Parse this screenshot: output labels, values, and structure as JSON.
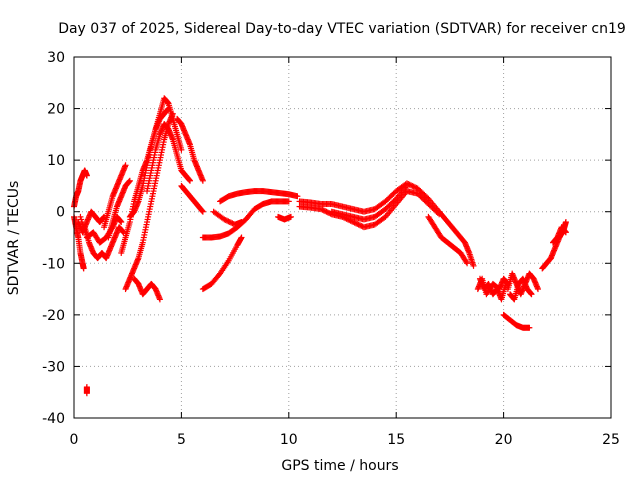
{
  "chart_data": {
    "type": "scatter",
    "title": "Day 037 of 2025, Sidereal Day-to-day VTEC variation (SDTVAR) for receiver cn19",
    "xlabel": "GPS time / hours",
    "ylabel": "SDTVAR / TECUs",
    "xlim": [
      0,
      25
    ],
    "ylim": [
      -40,
      30
    ],
    "xticks": [
      0,
      5,
      10,
      15,
      20,
      25
    ],
    "yticks": [
      -40,
      -30,
      -20,
      -10,
      0,
      10,
      20,
      30
    ],
    "grid": true,
    "marker": "+",
    "series": [
      {
        "name": "SDTVAR",
        "color": "#ff0000",
        "tracks": [
          [
            [
              0.0,
              -1
            ],
            [
              0.1,
              -3
            ],
            [
              0.2,
              -5
            ],
            [
              0.3,
              -8
            ],
            [
              0.4,
              -10
            ],
            [
              0.45,
              -11
            ]
          ],
          [
            [
              0.0,
              1
            ],
            [
              0.1,
              3
            ],
            [
              0.2,
              4
            ],
            [
              0.3,
              6
            ],
            [
              0.4,
              7
            ],
            [
              0.5,
              8
            ],
            [
              0.6,
              7
            ]
          ],
          [
            [
              0.2,
              -2
            ],
            [
              0.4,
              -4
            ],
            [
              0.6,
              -2
            ],
            [
              0.8,
              0
            ],
            [
              1.0,
              -1
            ],
            [
              1.2,
              -2
            ],
            [
              1.4,
              -1
            ]
          ],
          [
            [
              0.5,
              -3
            ],
            [
              0.7,
              -6
            ],
            [
              0.9,
              -8
            ],
            [
              1.1,
              -9
            ],
            [
              1.3,
              -8
            ],
            [
              1.5,
              -9
            ],
            [
              1.7,
              -7
            ],
            [
              1.9,
              -5
            ],
            [
              2.1,
              -3
            ],
            [
              2.3,
              -4
            ]
          ],
          [
            [
              0.3,
              -1
            ],
            [
              0.6,
              -5
            ],
            [
              0.9,
              -4
            ],
            [
              1.2,
              -6
            ],
            [
              1.5,
              -5
            ],
            [
              1.8,
              -3
            ],
            [
              2.0,
              -1
            ],
            [
              2.2,
              -2
            ]
          ],
          [
            [
              1.4,
              -3
            ],
            [
              1.6,
              0
            ],
            [
              1.8,
              3
            ],
            [
              2.0,
              5
            ],
            [
              2.2,
              7
            ],
            [
              2.4,
              9
            ]
          ],
          [
            [
              1.6,
              -5
            ],
            [
              1.8,
              -2
            ],
            [
              2.0,
              1
            ],
            [
              2.2,
              3
            ],
            [
              2.4,
              5
            ],
            [
              2.6,
              6
            ]
          ],
          [
            [
              2.2,
              -8
            ],
            [
              2.4,
              -5
            ],
            [
              2.6,
              -2
            ],
            [
              2.8,
              2
            ],
            [
              3.0,
              5
            ],
            [
              3.2,
              8
            ],
            [
              3.4,
              10
            ],
            [
              3.6,
              13
            ],
            [
              3.8,
              16
            ],
            [
              4.0,
              18
            ],
            [
              4.2,
              19
            ],
            [
              4.4,
              20
            ]
          ],
          [
            [
              2.4,
              -15
            ],
            [
              2.6,
              -13
            ],
            [
              2.8,
              -11
            ],
            [
              3.0,
              -9
            ],
            [
              3.2,
              -6
            ],
            [
              3.4,
              -2
            ],
            [
              3.6,
              2
            ],
            [
              3.8,
              6
            ],
            [
              4.0,
              10
            ],
            [
              4.2,
              14
            ],
            [
              4.4,
              17
            ],
            [
              4.6,
              19
            ]
          ],
          [
            [
              2.8,
              -13
            ],
            [
              3.0,
              -14
            ],
            [
              3.2,
              -16
            ],
            [
              3.4,
              -15
            ],
            [
              3.6,
              -14
            ],
            [
              3.8,
              -15
            ],
            [
              4.0,
              -17
            ]
          ],
          [
            [
              2.6,
              -1
            ],
            [
              2.8,
              0
            ],
            [
              3.0,
              2
            ],
            [
              3.2,
              5
            ],
            [
              3.4,
              9
            ],
            [
              3.6,
              13
            ],
            [
              3.8,
              16
            ],
            [
              4.0,
              19
            ],
            [
              4.2,
              22
            ],
            [
              4.4,
              21
            ],
            [
              4.6,
              18
            ],
            [
              4.8,
              15
            ],
            [
              5.0,
              12
            ]
          ],
          [
            [
              3.4,
              4
            ],
            [
              3.6,
              8
            ],
            [
              3.8,
              12
            ],
            [
              4.0,
              15
            ],
            [
              4.2,
              17
            ],
            [
              4.4,
              16
            ],
            [
              4.6,
              14
            ],
            [
              4.8,
              11
            ],
            [
              5.0,
              8
            ],
            [
              5.2,
              7
            ],
            [
              5.4,
              6
            ]
          ],
          [
            [
              4.8,
              18
            ],
            [
              5.0,
              17
            ],
            [
              5.2,
              15
            ],
            [
              5.4,
              13
            ],
            [
              5.6,
              10
            ],
            [
              5.8,
              8
            ],
            [
              6.0,
              6
            ]
          ],
          [
            [
              5.0,
              5
            ],
            [
              5.2,
              4
            ],
            [
              5.4,
              3
            ],
            [
              5.6,
              2
            ],
            [
              5.8,
              1
            ],
            [
              6.0,
              0
            ]
          ],
          [
            [
              6.0,
              -5
            ],
            [
              6.4,
              -5
            ],
            [
              6.8,
              -4.8
            ],
            [
              7.2,
              -4.2
            ],
            [
              7.6,
              -3
            ],
            [
              8.0,
              -1.5
            ],
            [
              8.4,
              0.5
            ],
            [
              8.8,
              1.5
            ],
            [
              9.2,
              2
            ],
            [
              9.6,
              2
            ],
            [
              10.0,
              2
            ]
          ],
          [
            [
              6.0,
              -15
            ],
            [
              6.4,
              -14
            ],
            [
              6.8,
              -12
            ],
            [
              7.2,
              -9.5
            ],
            [
              7.6,
              -6.5
            ],
            [
              7.8,
              -5
            ]
          ],
          [
            [
              6.8,
              2
            ],
            [
              7.2,
              3
            ],
            [
              7.6,
              3.5
            ],
            [
              8.0,
              3.8
            ],
            [
              8.4,
              4
            ],
            [
              8.8,
              4
            ],
            [
              9.2,
              3.8
            ],
            [
              9.6,
              3.6
            ],
            [
              10.0,
              3.4
            ],
            [
              10.4,
              3
            ]
          ],
          [
            [
              6.5,
              0
            ],
            [
              7.0,
              -1.5
            ],
            [
              7.5,
              -2.5
            ],
            [
              7.8,
              -2
            ]
          ],
          [
            [
              9.5,
              -1
            ],
            [
              9.8,
              -1.5
            ],
            [
              10.1,
              -1
            ]
          ],
          [
            [
              10.5,
              2
            ],
            [
              11.0,
              1.8
            ],
            [
              11.5,
              1.5
            ],
            [
              12.0,
              1.5
            ],
            [
              12.5,
              1
            ],
            [
              13.0,
              0.5
            ],
            [
              13.5,
              0
            ],
            [
              14.0,
              0.5
            ],
            [
              14.5,
              2
            ],
            [
              15.0,
              4
            ],
            [
              15.5,
              5.5
            ],
            [
              16.0,
              4.5
            ],
            [
              16.5,
              2.5
            ],
            [
              17.0,
              0
            ]
          ],
          [
            [
              10.5,
              1
            ],
            [
              11.0,
              0.8
            ],
            [
              11.5,
              0.5
            ],
            [
              12.0,
              -0.5
            ],
            [
              12.5,
              -1
            ],
            [
              13.0,
              -2
            ],
            [
              13.5,
              -3
            ],
            [
              14.0,
              -2.5
            ],
            [
              14.5,
              -1
            ],
            [
              15.0,
              1.5
            ],
            [
              15.5,
              4
            ],
            [
              16.0,
              3.5
            ],
            [
              16.5,
              1.5
            ],
            [
              17.0,
              -0.5
            ]
          ],
          [
            [
              12.0,
              0
            ],
            [
              12.5,
              -0.5
            ],
            [
              13.0,
              -1
            ],
            [
              13.5,
              -1.5
            ],
            [
              14.0,
              -1
            ],
            [
              14.5,
              0.5
            ],
            [
              15.0,
              2.5
            ],
            [
              15.5,
              5
            ]
          ],
          [
            [
              16.5,
              -1
            ],
            [
              16.8,
              -3
            ],
            [
              17.1,
              -5
            ],
            [
              17.4,
              -6
            ],
            [
              17.7,
              -7
            ],
            [
              18.0,
              -8
            ],
            [
              18.3,
              -10
            ]
          ],
          [
            [
              17.0,
              0
            ],
            [
              17.3,
              -1.5
            ],
            [
              17.6,
              -3
            ],
            [
              17.9,
              -4.5
            ],
            [
              18.2,
              -6
            ],
            [
              18.4,
              -8
            ],
            [
              18.6,
              -10.5
            ]
          ],
          [
            [
              18.9,
              -13
            ],
            [
              19.1,
              -15
            ],
            [
              19.3,
              -14
            ],
            [
              19.5,
              -16
            ],
            [
              19.7,
              -15
            ],
            [
              19.9,
              -17
            ],
            [
              20.1,
              -14
            ]
          ],
          [
            [
              18.8,
              -15
            ],
            [
              19.0,
              -13
            ],
            [
              19.2,
              -16
            ],
            [
              19.5,
              -14
            ],
            [
              19.8,
              -15
            ],
            [
              20.0,
              -13
            ],
            [
              20.2,
              -14
            ]
          ],
          [
            [
              20.2,
              -15
            ],
            [
              20.4,
              -12
            ],
            [
              20.6,
              -14
            ],
            [
              20.8,
              -16
            ],
            [
              21.0,
              -14
            ],
            [
              21.2,
              -12
            ],
            [
              21.4,
              -13
            ],
            [
              21.6,
              -15
            ]
          ],
          [
            [
              20.3,
              -16
            ],
            [
              20.5,
              -17
            ],
            [
              20.7,
              -14
            ],
            [
              20.9,
              -13
            ],
            [
              21.1,
              -15
            ],
            [
              21.3,
              -16
            ]
          ],
          [
            [
              20.0,
              -20
            ],
            [
              20.3,
              -21
            ],
            [
              20.6,
              -22
            ],
            [
              20.9,
              -22.5
            ],
            [
              21.2,
              -22.5
            ]
          ],
          [
            [
              21.8,
              -11
            ],
            [
              22.0,
              -10
            ],
            [
              22.2,
              -9
            ]
          ],
          [
            [
              22.2,
              -9
            ],
            [
              22.4,
              -7
            ],
            [
              22.6,
              -5
            ],
            [
              22.8,
              -3.5
            ],
            [
              22.9,
              -2
            ]
          ],
          [
            [
              22.3,
              -6
            ],
            [
              22.5,
              -5
            ],
            [
              22.7,
              -3
            ],
            [
              22.9,
              -4
            ]
          ],
          [
            [
              0.6,
              -34
            ],
            [
              0.6,
              -35.2
            ]
          ]
        ]
      }
    ]
  }
}
